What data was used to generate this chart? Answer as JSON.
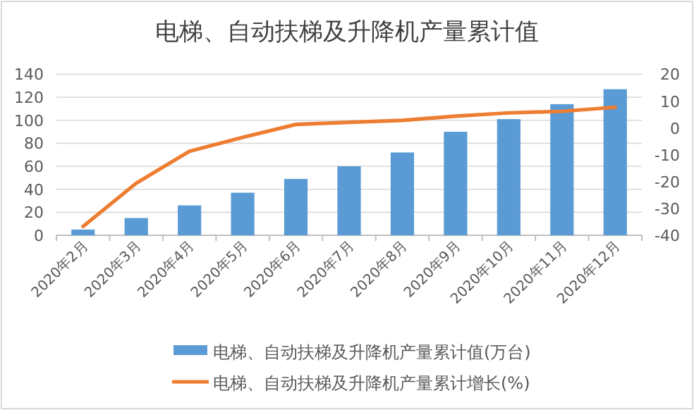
{
  "chart_data": {
    "type": "bar",
    "title": "电梯、自动扶梯及升降机产量累计值",
    "categories": [
      "2020年2月",
      "2020年3月",
      "2020年4月",
      "2020年5月",
      "2020年6月",
      "2020年7月",
      "2020年8月",
      "2020年9月",
      "2020年10月",
      "2020年11月",
      "2020年12月"
    ],
    "series": [
      {
        "name": "电梯、自动扶梯及升降机产量累计值(万台)",
        "color": "#5b9bd5",
        "values": [
          5,
          15,
          26,
          37,
          49,
          60,
          72,
          90,
          101,
          114,
          127
        ]
      },
      {
        "name": "电梯、自动扶梯及升降机产量累计增长(%)",
        "type": "line",
        "axis": "y2",
        "color": "#ed7d31",
        "values": [
          -36.7,
          -20.6,
          -8.7,
          -3.5,
          1.3,
          2.1,
          2.8,
          4.4,
          5.6,
          6.2,
          7.7
        ]
      }
    ],
    "ylim": [
      0,
      140
    ],
    "yticks": [
      0,
      20,
      40,
      60,
      80,
      100,
      120,
      140
    ],
    "y2lim": [
      -40,
      20
    ],
    "y2ticks": [
      -40,
      -30,
      -20,
      -10,
      0,
      10,
      20
    ],
    "grid": "y",
    "legend": "bottom"
  }
}
